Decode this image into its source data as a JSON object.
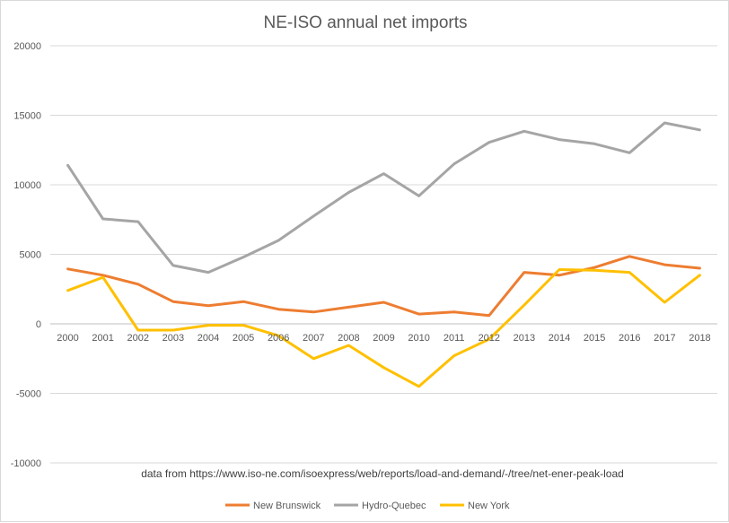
{
  "chart_data": {
    "type": "line",
    "title": "NE-ISO annual net imports",
    "xlabel": "",
    "ylabel": "",
    "ylim": [
      -10000,
      20000
    ],
    "yticks": [
      20000,
      15000,
      10000,
      5000,
      0,
      -5000,
      -10000
    ],
    "grid": true,
    "legend_position": "bottom",
    "categories": [
      "2000",
      "2001",
      "2002",
      "2003",
      "2004",
      "2005",
      "2006",
      "2007",
      "2008",
      "2009",
      "2010",
      "2011",
      "2012",
      "2013",
      "2014",
      "2015",
      "2016",
      "2017",
      "2018"
    ],
    "series": [
      {
        "name": "New Brunswick",
        "color": "#ED7D31",
        "values": [
          3950,
          3500,
          2850,
          1600,
          1300,
          1600,
          1050,
          850,
          1200,
          1550,
          700,
          850,
          600,
          3700,
          3500,
          4050,
          4850,
          4250,
          4000
        ]
      },
      {
        "name": "Hydro-Quebec",
        "color": "#A5A5A5",
        "values": [
          11400,
          7550,
          7350,
          4200,
          3700,
          4800,
          6000,
          7750,
          9450,
          10800,
          9200,
          11500,
          13050,
          13850,
          13250,
          12950,
          12300,
          14450,
          13950
        ]
      },
      {
        "name": "New York",
        "color": "#FFC000",
        "values": [
          2400,
          3350,
          -450,
          -450,
          -100,
          -100,
          -850,
          -2500,
          -1550,
          -3150,
          -4500,
          -2300,
          -1100,
          1350,
          3900,
          3850,
          3700,
          1550,
          3500
        ]
      }
    ],
    "annotation": "data from  https://www.iso-ne.com/isoexpress/web/reports/load-and-demand/-/tree/net-ener-peak-load"
  }
}
